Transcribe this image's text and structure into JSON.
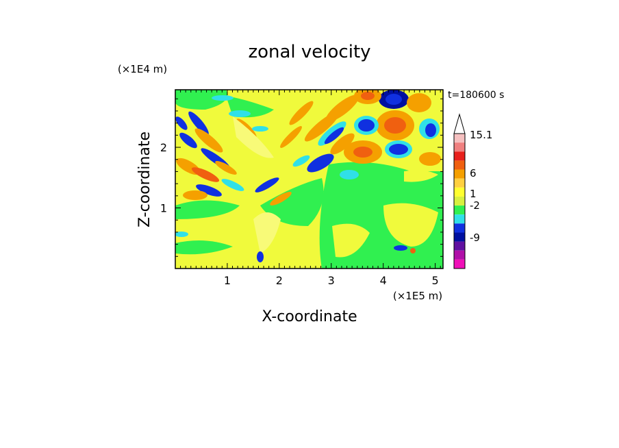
{
  "chart_data": {
    "type": "heatmap",
    "title": "zonal velocity",
    "xlabel": "X-coordinate",
    "ylabel": "Z-coordinate",
    "x_unit": "(×1E5 m)",
    "y_unit": "(×1E4 m)",
    "time_label": "t=180600 s",
    "xlim": [
      0,
      5.15
    ],
    "ylim": [
      0,
      2.95
    ],
    "x_ticks": [
      "1",
      "2",
      "3",
      "4",
      "5"
    ],
    "y_ticks": [
      "1",
      "2"
    ],
    "colorbar": {
      "labels": [
        "15.1",
        "6",
        "1",
        "-2",
        "-9"
      ],
      "colors": [
        "#ffffff",
        "#f5c0c0",
        "#f08080",
        "#e8201c",
        "#f06010",
        "#f5a000",
        "#ffd040",
        "#ffff30",
        "#d8f040",
        "#30f050",
        "#30e0e8",
        "#1030e0",
        "#0010a0",
        "#6010a0",
        "#b010a8",
        "#f010b8"
      ]
    },
    "field_colors": {
      "background": "#f0fa3c",
      "green": "#30f050",
      "light_yellow": "#f8fa78",
      "orange": "#f5a000",
      "red_orange": "#f06010",
      "blue": "#1030e0",
      "cyan": "#30e0e8"
    }
  }
}
